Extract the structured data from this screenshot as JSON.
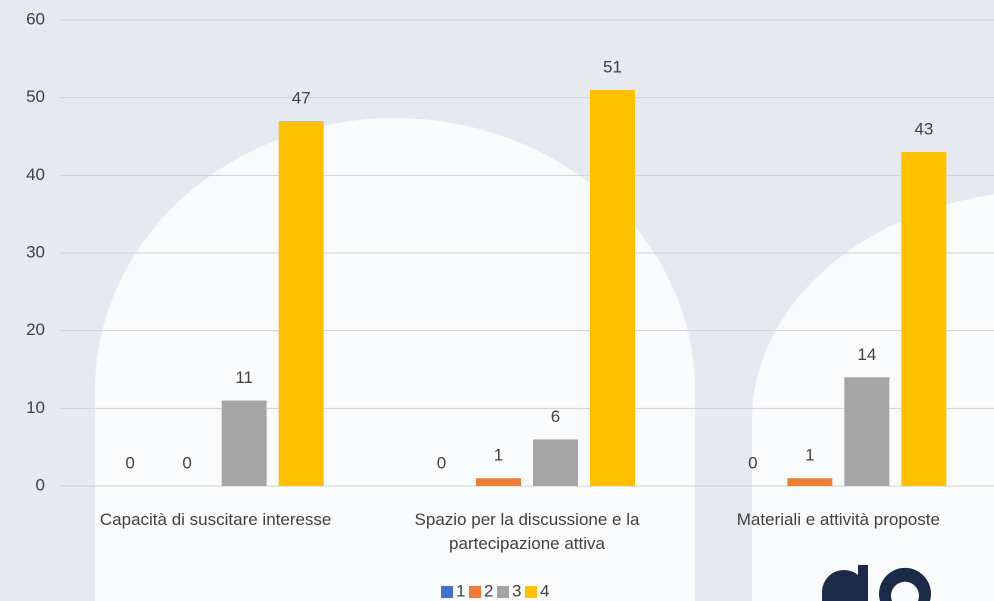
{
  "chart_data": {
    "type": "bar",
    "categories": [
      "Capacità di suscitare interesse",
      "Spazio per la discussione e la partecipazione attiva",
      "Materiali e attività proposte"
    ],
    "series": [
      {
        "name": "1",
        "color": "#4472c4",
        "values": [
          0,
          0,
          0
        ]
      },
      {
        "name": "2",
        "color": "#ed7d31",
        "values": [
          0,
          1,
          1
        ]
      },
      {
        "name": "3",
        "color": "#a5a5a5",
        "values": [
          11,
          6,
          14
        ]
      },
      {
        "name": "4",
        "color": "#ffc000",
        "values": [
          47,
          51,
          43
        ]
      }
    ],
    "ylim": [
      0,
      60
    ],
    "yticks": [
      0,
      10,
      20,
      30,
      40,
      50,
      60
    ],
    "grid": true,
    "legend": "bottom"
  }
}
